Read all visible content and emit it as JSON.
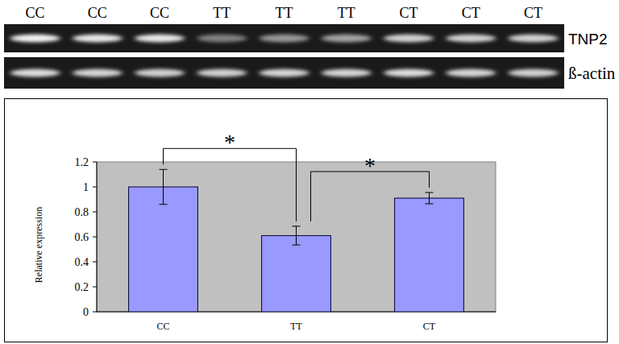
{
  "gel": {
    "lanes": [
      "CC",
      "CC",
      "CC",
      "TT",
      "TT",
      "TT",
      "CT",
      "CT",
      "CT"
    ],
    "rows": [
      {
        "label": "TNP2",
        "intensity": [
          0.95,
          0.9,
          0.9,
          0.45,
          0.55,
          0.6,
          0.8,
          0.8,
          0.8
        ]
      },
      {
        "label": "ß-actin",
        "intensity": [
          0.85,
          0.82,
          0.8,
          0.8,
          0.82,
          0.82,
          0.85,
          0.82,
          0.8
        ]
      }
    ]
  },
  "chart_data": {
    "type": "bar",
    "y_label": "Relative expression",
    "categories": [
      "CC",
      "TT",
      "CT"
    ],
    "values": [
      1.0,
      0.61,
      0.91
    ],
    "errors": [
      0.14,
      0.075,
      0.045
    ],
    "color": "#9999ff",
    "ylim": [
      0,
      1.2
    ],
    "yticks": [
      0,
      0.2,
      0.4,
      0.6,
      0.8,
      1,
      1.2
    ],
    "grid": false,
    "significance": [
      {
        "pair": [
          "CC",
          "TT"
        ],
        "label": "*"
      },
      {
        "pair": [
          "TT",
          "CT"
        ],
        "label": "*"
      }
    ]
  }
}
